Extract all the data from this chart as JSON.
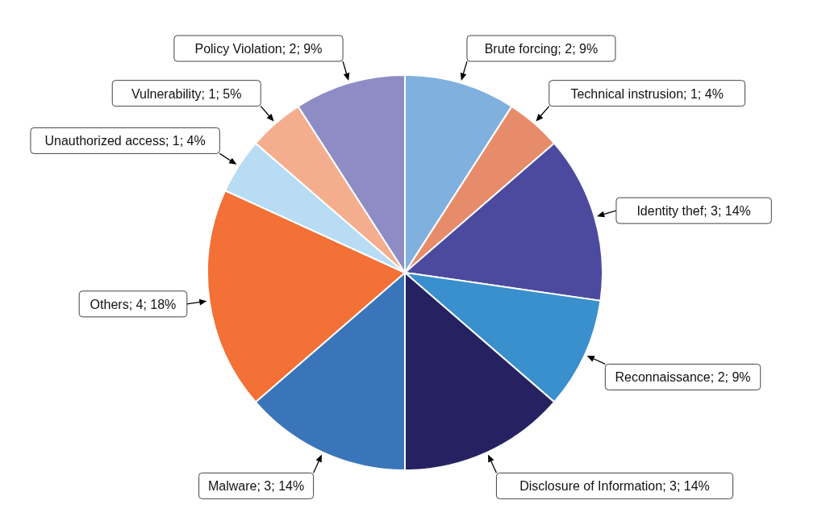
{
  "chart_data": {
    "type": "pie",
    "categories": [
      "Malware",
      "Others",
      "Unauthorized access",
      "Vulnerability",
      "Policy Violation",
      "Brute forcing",
      "Technical instrusion",
      "Identity thef",
      "Reconnaissance",
      "Disclosure of Information"
    ],
    "values": [
      3,
      4,
      1,
      1,
      2,
      2,
      1,
      3,
      2,
      3
    ],
    "value_labels": [
      "3; 14%",
      "4; 18%",
      "1; 4%",
      "1; 5%",
      "2; 9%",
      "2; 9%",
      "1; 4%",
      "3; 14%",
      "2; 9%",
      "3; 14%"
    ],
    "colors": [
      "#3a75b9",
      "#f37036",
      "#b7dcf3",
      "#f4ae8e",
      "#8d8cc4",
      "#80b1de",
      "#e78c6a",
      "#4b4a9e",
      "#3a8fcd",
      "#262262"
    ],
    "legend": false
  }
}
